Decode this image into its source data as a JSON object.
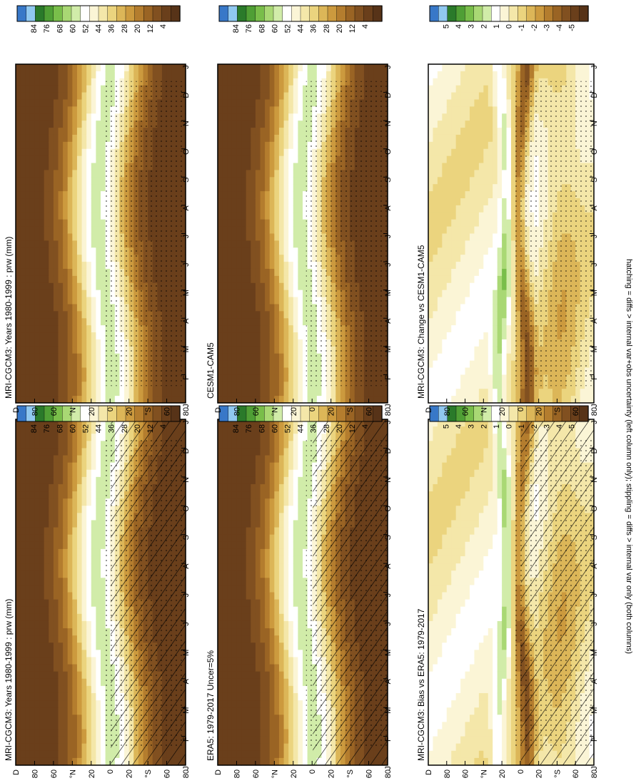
{
  "footnote": "hatching = diffs > internal var+obs uncertainty (left column only); stippling = diffs > internal var only (both columns)",
  "colors": {
    "state_scale": [
      "#3878c8",
      "#90c8f0",
      "#2a7a2a",
      "#4f9f35",
      "#79be4a",
      "#a9d874",
      "#d1eca9",
      "#ffffff",
      "#fbf5d6",
      "#f4e7a9",
      "#ebd47e",
      "#dcb658",
      "#cc9a3e",
      "#b47d2e",
      "#9a6424",
      "#815020",
      "#6a3f1b",
      "#573318"
    ],
    "diff_scale": [
      "#3878c8",
      "#90c8f0",
      "#2a7a2a",
      "#4f9f35",
      "#79be4a",
      "#a9d874",
      "#d1eca9",
      "#ffffff",
      "#fbf5d6",
      "#f4e7a9",
      "#ebd47e",
      "#dcb658",
      "#cc9a3e",
      "#b47d2e",
      "#9a6424",
      "#815020",
      "#6a3f1b",
      "#573318"
    ]
  },
  "chart_data": [
    {
      "type": "heatmap",
      "panel": "row1-left",
      "title": "MRI-CGCM3: Years 1980-1999 : prw (mm)",
      "x_ticks": [
        "J",
        "F",
        "M",
        "A",
        "M",
        "J",
        "J",
        "A",
        "S",
        "O",
        "N",
        "D",
        "J"
      ],
      "y_ticks": [
        "D",
        "80",
        "60",
        "°N",
        "20",
        "0",
        "20",
        "°S",
        "60",
        "80"
      ],
      "colorbar_labels": [
        "84",
        "76",
        "68",
        "60",
        "52",
        "44",
        "36",
        "28",
        "20",
        "12",
        "4"
      ],
      "scale": "state",
      "hatching": true,
      "stippling": true
    },
    {
      "type": "heatmap",
      "panel": "row1-right",
      "title": "MRI-CGCM3: Years 1980-1999 : prw (mm)",
      "x_ticks": [
        "J",
        "F",
        "M",
        "A",
        "M",
        "J",
        "J",
        "A",
        "S",
        "O",
        "N",
        "D",
        "J"
      ],
      "y_ticks": [
        "D",
        "80",
        "60",
        "°N",
        "20",
        "0",
        "20",
        "°S",
        "60",
        "80"
      ],
      "colorbar_labels": [
        "84",
        "76",
        "68",
        "60",
        "52",
        "44",
        "36",
        "28",
        "20",
        "12",
        "4"
      ],
      "scale": "state",
      "hatching": false,
      "stippling": true
    },
    {
      "type": "heatmap",
      "panel": "row2-left",
      "title": "ERA5: 1979-2017 Uncer=5%",
      "x_ticks": [
        "J",
        "F",
        "M",
        "A",
        "M",
        "J",
        "J",
        "A",
        "S",
        "O",
        "N",
        "D",
        "J"
      ],
      "y_ticks": [
        "D",
        "80",
        "60",
        "°N",
        "20",
        "0",
        "20",
        "°S",
        "60",
        "80"
      ],
      "colorbar_labels": [
        "84",
        "76",
        "68",
        "60",
        "52",
        "44",
        "36",
        "28",
        "20",
        "12",
        "4"
      ],
      "scale": "state",
      "hatching": true,
      "stippling": true
    },
    {
      "type": "heatmap",
      "panel": "row2-right",
      "title": "CESM1-CAM5",
      "x_ticks": [
        "J",
        "F",
        "M",
        "A",
        "M",
        "J",
        "J",
        "A",
        "S",
        "O",
        "N",
        "D",
        "J"
      ],
      "y_ticks": [
        "D",
        "80",
        "60",
        "°N",
        "20",
        "0",
        "20",
        "°S",
        "60",
        "80"
      ],
      "colorbar_labels": [
        "84",
        "76",
        "68",
        "60",
        "52",
        "44",
        "36",
        "28",
        "20",
        "12",
        "4"
      ],
      "scale": "state",
      "hatching": false,
      "stippling": true
    },
    {
      "type": "heatmap",
      "panel": "row3-left",
      "title": "MRI-CGCM3: Bias vs ERA5: 1979-2017",
      "x_ticks": [
        "J",
        "F",
        "M",
        "A",
        "M",
        "J",
        "J",
        "A",
        "S",
        "O",
        "N",
        "D",
        "J"
      ],
      "y_ticks": [
        "D",
        "80",
        "60",
        "°N",
        "20",
        "0",
        "20",
        "°S",
        "60",
        "80"
      ],
      "colorbar_labels": [
        "5",
        "4",
        "3",
        "2",
        "1",
        "0",
        "-1",
        "-2",
        "-3",
        "-4",
        "-5"
      ],
      "scale": "diff",
      "hatching": true,
      "stippling": true
    },
    {
      "type": "heatmap",
      "panel": "row3-right",
      "title": "MRI-CGCM3: Change vs CESM1-CAM5",
      "x_ticks": [
        "J",
        "F",
        "M",
        "A",
        "M",
        "J",
        "J",
        "A",
        "S",
        "O",
        "N",
        "D",
        "J"
      ],
      "y_ticks": [
        "D",
        "80",
        "60",
        "°N",
        "20",
        "0",
        "20",
        "°S",
        "60",
        "80"
      ],
      "colorbar_labels": [
        "5",
        "4",
        "3",
        "2",
        "1",
        "0",
        "-1",
        "-2",
        "-3",
        "-4",
        "-5"
      ],
      "scale": "diff",
      "hatching": false,
      "stippling": true
    }
  ]
}
